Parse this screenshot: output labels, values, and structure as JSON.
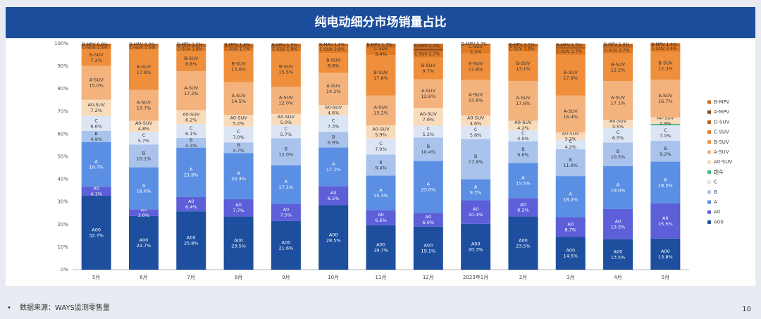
{
  "chart_data": {
    "type": "stacked_bar",
    "title": "纯电动细分市场销量占比",
    "categories": [
      "5月",
      "6月",
      "7月",
      "8月",
      "9月",
      "10月",
      "11月",
      "12月",
      "2023年1月",
      "2月",
      "3月",
      "4月",
      "5月"
    ],
    "ylim": [
      0,
      100
    ],
    "yticks": [
      {
        "value": 0,
        "label": "0%"
      },
      {
        "value": 10,
        "label": "10%"
      },
      {
        "value": 20,
        "label": "20%"
      },
      {
        "value": 30,
        "label": "30%"
      },
      {
        "value": 40,
        "label": "40%"
      },
      {
        "value": 50,
        "label": "50%"
      },
      {
        "value": 60,
        "label": "60%"
      },
      {
        "value": 70,
        "label": "70%"
      },
      {
        "value": 80,
        "label": "80%"
      },
      {
        "value": 90,
        "label": "90%"
      },
      {
        "value": 100,
        "label": "100%"
      }
    ],
    "grid": false,
    "legend": "right",
    "series": [
      {
        "name": "A00",
        "color": "#1d4f9e",
        "values": [
          32.7,
          23.7,
          25.8,
          23.5,
          21.6,
          28.5,
          19.7,
          19.1,
          20.3,
          23.5,
          14.5,
          13.5,
          13.8
        ],
        "value_labels": [
          "32.7%",
          "23.7%",
          "25.8%",
          "23.5%",
          "21.6%",
          "28.5%",
          "19.7%",
          "19.1%",
          "20.3%",
          "23.5%",
          "14.5%",
          "13.5%",
          "13.8%"
        ]
      },
      {
        "name": "A0",
        "color": "#5c5fd8",
        "values": [
          4.1,
          3.0,
          6.4,
          7.7,
          7.5,
          8.5,
          6.6,
          6.0,
          10.4,
          8.2,
          8.7,
          13.3,
          15.5
        ],
        "value_labels": [
          "4.1%",
          "3.0%",
          "6.4%",
          "7.7%",
          "7.5%",
          "8.5%",
          "6.6%",
          "6.0%",
          "10.4%",
          "8.2%",
          "8.7%",
          "13.3%",
          "15.5%"
        ]
      },
      {
        "name": "A",
        "color": "#5b8fe4",
        "values": [
          19.7,
          18.6,
          21.8,
          20.4,
          17.1,
          17.1,
          15.3,
          23.0,
          9.3,
          15.5,
          18.2,
          19.0,
          18.5
        ],
        "value_labels": [
          "19.7%",
          "18.6%",
          "21.8%",
          "20.4%",
          "17.1%",
          "17.1%",
          "15.3%",
          "23.0%",
          "9.3%",
          "15.5%",
          "18.2%",
          "19.0%",
          "18.5%"
        ]
      },
      {
        "name": "B",
        "color": "#a9c3ec",
        "values": [
          4.9,
          10.1,
          4.3,
          4.7,
          12.0,
          6.9,
          9.4,
          10.4,
          17.8,
          9.6,
          11.9,
          10.5,
          9.2
        ],
        "value_labels": [
          "4.9%",
          "10.1%",
          "4.3%",
          "4.7%",
          "12.0%",
          "6.9%",
          "9.4%",
          "10.4%",
          "17.8%",
          "9.6%",
          "11.9%",
          "10.5%",
          "9.2%"
        ]
      },
      {
        "name": "C",
        "color": "#dce5f4",
        "values": [
          6.6,
          5.7,
          6.1,
          7.0,
          5.7,
          7.3,
          7.0,
          5.2,
          5.8,
          4.9,
          4.2,
          6.5,
          7.0
        ],
        "value_labels": [
          "6.6%",
          "5.7%",
          "6.1%",
          "7.0%",
          "5.7%",
          "7.3%",
          "7.0%",
          "5.2%",
          "5.8%",
          "4.9%",
          "4.2%",
          "6.5%",
          "7.0%"
        ]
      },
      {
        "name": "跑车",
        "color": "#3cb878",
        "values": [
          0,
          0,
          0,
          0,
          0,
          0,
          0,
          0,
          0,
          0,
          0,
          0,
          0.5
        ]
      },
      {
        "name": "A0-SUV",
        "color": "#f8dbbb",
        "values": [
          7.2,
          4.8,
          6.2,
          5.2,
          5.0,
          4.6,
          5.9,
          7.9,
          4.6,
          4.2,
          3.2,
          3.5,
          2.9
        ],
        "value_labels": [
          "7.2%",
          "4.8%",
          "6.2%",
          "5.2%",
          "5.0%",
          "4.6%",
          "5.9%",
          "7.9%",
          "4.6%",
          "4.2%",
          "3.2%",
          "3.5%",
          "2.9%"
        ]
      },
      {
        "name": "A-SUV",
        "color": "#f4b27c",
        "values": [
          15.0,
          13.7,
          17.2,
          14.5,
          12.0,
          14.2,
          13.2,
          12.6,
          15.8,
          17.6,
          16.4,
          17.1,
          16.7
        ],
        "value_labels": [
          "15.0%",
          "13.7%",
          "17.2%",
          "14.5%",
          "12.0%",
          "14.2%",
          "13.2%",
          "12.6%",
          "15.8%",
          "17.6%",
          "16.4%",
          "17.1%",
          "16.7%"
        ]
      },
      {
        "name": "B-SUV",
        "color": "#ef8f3c",
        "values": [
          7.2,
          17.8,
          8.8,
          13.6,
          15.5,
          8.8,
          17.8,
          9.7,
          11.8,
          13.1,
          17.9,
          12.2,
          12.3
        ],
        "value_labels": [
          "7.2%",
          "17.8%",
          "8.8%",
          "13.6%",
          "15.5%",
          "8.8%",
          "17.8%",
          "9.7%",
          "11.8%",
          "13.1%",
          "17.9%",
          "12.2%",
          "12.3%"
        ]
      },
      {
        "name": "C-SUV",
        "color": "#e07b24",
        "values": [
          1.5,
          1.5,
          1.8,
          1.7,
          1.9,
          2.8,
          3.4,
          2.7,
          3.3,
          1.9,
          2.7,
          2.7,
          2.4
        ],
        "value_labels": [
          "1.5%",
          "1.5%",
          "1.8%",
          "1.7%",
          "1.9%",
          "2.8%",
          "3.4%",
          "2.7%",
          "3.3%",
          "1.9%",
          "2.7%",
          "2.7%",
          "2.4%"
        ]
      },
      {
        "name": "D-SUV",
        "color": "#b85a18",
        "values": [
          0.3,
          0.2,
          0.3,
          0.3,
          0.2,
          0.1,
          0.4,
          0.6,
          0.2,
          0.4,
          0.8,
          0.7,
          0
        ]
      },
      {
        "name": "A-MPV",
        "color": "#8c4a16",
        "values": [
          0,
          0,
          0.3,
          0,
          0,
          0,
          0,
          0.5,
          0,
          0,
          0,
          0,
          0
        ]
      },
      {
        "name": "B-MPV",
        "color": "#c96a1e",
        "values": [
          0.8,
          0.9,
          1.0,
          1.4,
          1.5,
          1.2,
          1.3,
          2.3,
          0.7,
          1.1,
          1.5,
          1.0,
          1.4
        ],
        "value_labels": [
          "0.8%",
          "0.9%",
          "1.0%",
          "1.4%",
          "1.5%",
          "1.2%",
          "1.3%",
          "2.3%",
          "0.7%",
          "1.1%",
          "1.5%",
          "1.0%",
          "1.4%"
        ]
      }
    ]
  },
  "footer": {
    "source": "数据来源：WAYS监测零售量",
    "page_number": 10
  }
}
